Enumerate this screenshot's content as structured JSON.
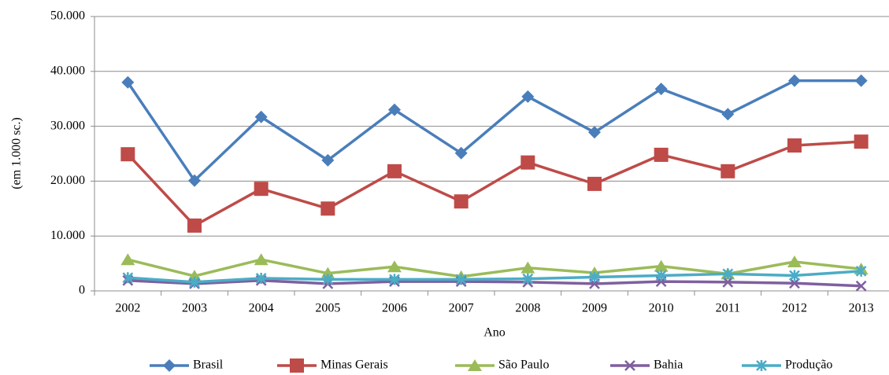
{
  "chart_data": {
    "type": "line",
    "x_label": "Ano",
    "y_label": "(em 1.000 sc.)",
    "categories": [
      "2002",
      "2003",
      "2004",
      "2005",
      "2006",
      "2007",
      "2008",
      "2009",
      "2010",
      "2011",
      "2012",
      "2013"
    ],
    "series": [
      {
        "name": "Brasil",
        "color": "#4a7ebb",
        "marker": "diamond",
        "values": [
          38000,
          20100,
          31700,
          23800,
          33000,
          25100,
          35400,
          28900,
          36800,
          32200,
          38300,
          38300
        ]
      },
      {
        "name": "Minas Gerais",
        "color": "#be4b48",
        "marker": "square",
        "values": [
          24900,
          11900,
          18600,
          15000,
          21800,
          16300,
          23400,
          19500,
          24800,
          21800,
          26500,
          27200
        ]
      },
      {
        "name": "São Paulo",
        "color": "#9bbb59",
        "marker": "triangle",
        "values": [
          5700,
          2700,
          5700,
          3200,
          4400,
          2600,
          4200,
          3300,
          4500,
          3100,
          5300,
          4000
        ]
      },
      {
        "name": "Bahia",
        "color": "#7f5fa0",
        "marker": "x",
        "values": [
          1900,
          1300,
          1900,
          1300,
          1700,
          1700,
          1600,
          1300,
          1700,
          1600,
          1400,
          900
        ]
      },
      {
        "name": "Produção",
        "color": "#4bacc6",
        "marker": "star",
        "values": [
          2400,
          1600,
          2300,
          2100,
          2100,
          2100,
          2200,
          2500,
          2800,
          3100,
          2800,
          3600
        ]
      }
    ],
    "ylim": [
      0,
      50000
    ],
    "yticks": [
      0,
      {
        "value": 10000,
        "label": "10.000"
      },
      {
        "value": 20000,
        "label": "20.000"
      },
      {
        "value": 30000,
        "label": "30.000"
      },
      {
        "value": 40000,
        "label": "40.000"
      },
      {
        "value": 50000,
        "label": "50.000"
      }
    ],
    "grid": true,
    "legend": "bottom"
  }
}
